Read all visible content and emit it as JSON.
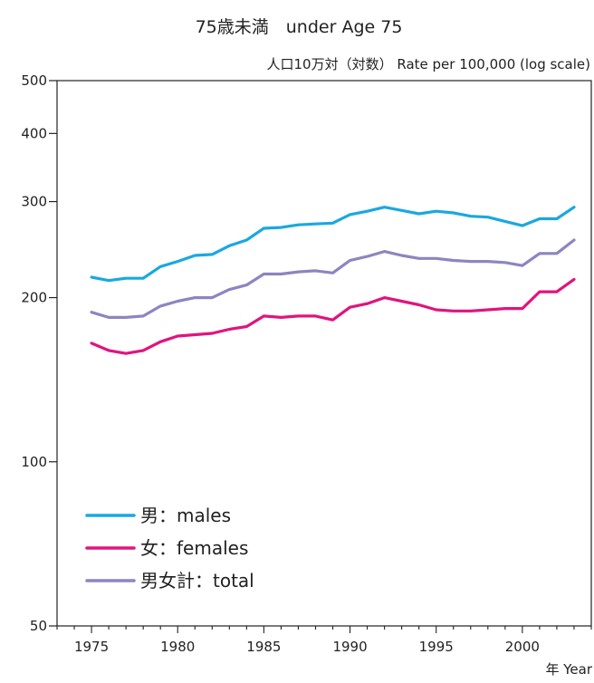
{
  "chart_data": {
    "type": "line",
    "title": "75歳未満　under Age 75",
    "ylabel": "人口10万対（対数） Rate per 100,000 (log scale)",
    "xlabel": "年  Year",
    "yscale": "log",
    "ylim": [
      50,
      500
    ],
    "xlim": [
      1973,
      2004
    ],
    "yticks": [
      50,
      100,
      200,
      300,
      400,
      500
    ],
    "ytick_labels": [
      "50",
      "100",
      "200",
      "300",
      "400",
      "500"
    ],
    "xticks": [
      1975,
      1980,
      1985,
      1990,
      1995,
      2000
    ],
    "xtick_labels": [
      "1975",
      "1980",
      "1985",
      "1990",
      "1995",
      "2000"
    ],
    "legend_position": "lower-left",
    "x": [
      1975,
      1976,
      1977,
      1978,
      1979,
      1980,
      1981,
      1982,
      1983,
      1984,
      1985,
      1986,
      1987,
      1988,
      1989,
      1990,
      1991,
      1992,
      1993,
      1994,
      1995,
      1996,
      1997,
      1998,
      1999,
      2000,
      2001,
      2002,
      2003
    ],
    "series": [
      {
        "name": "男：males",
        "color": "#1aa8e0",
        "values": [
          218,
          215,
          217,
          217,
          228,
          233,
          239,
          240,
          249,
          255,
          268,
          269,
          272,
          273,
          274,
          284,
          288,
          293,
          289,
          285,
          288,
          286,
          282,
          281,
          276,
          271,
          279,
          279,
          293
        ]
      },
      {
        "name": "女：females",
        "color": "#e0147e",
        "values": [
          165,
          160,
          158,
          160,
          166,
          170,
          171,
          172,
          175,
          177,
          185,
          184,
          185,
          185,
          182,
          192,
          195,
          200,
          197,
          194,
          190,
          189,
          189,
          190,
          191,
          191,
          205,
          205,
          216
        ]
      },
      {
        "name": "男女計：total",
        "color": "#8b86c0",
        "values": [
          188,
          184,
          184,
          185,
          193,
          197,
          200,
          200,
          207,
          211,
          221,
          221,
          223,
          224,
          222,
          234,
          238,
          243,
          239,
          236,
          236,
          234,
          233,
          233,
          232,
          229,
          241,
          241,
          255
        ]
      }
    ]
  }
}
